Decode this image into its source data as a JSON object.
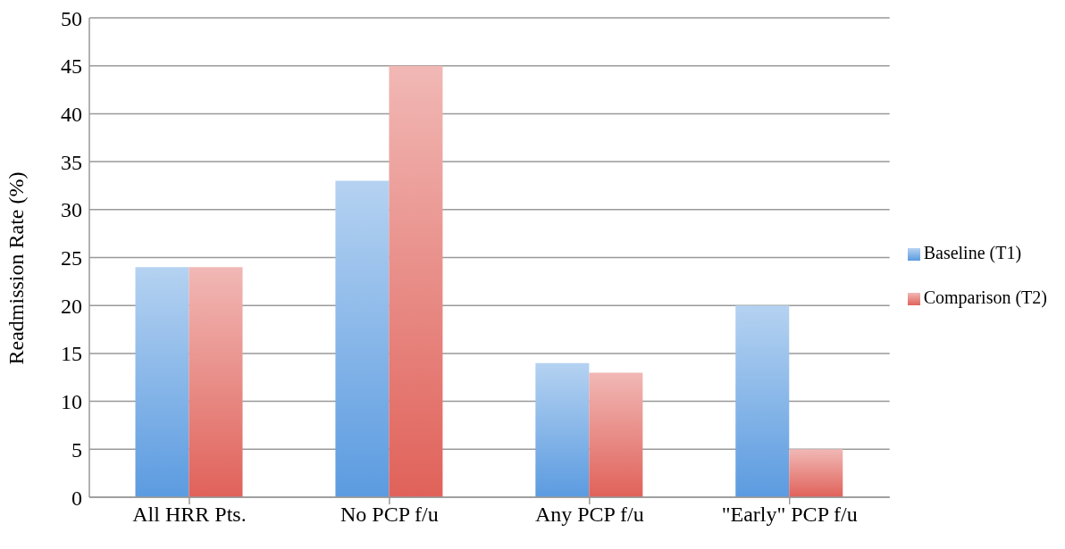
{
  "chart_data": {
    "type": "bar",
    "ylabel": "Readmission Rate (%)",
    "categories": [
      "All HRR Pts.",
      "No PCP f/u",
      "Any PCP f/u",
      "\"Early\" PCP f/u"
    ],
    "series": [
      {
        "name": "Baseline (T1)",
        "color": "#5b9be0",
        "values": [
          24,
          33,
          14,
          20
        ]
      },
      {
        "name": "Comparison (T2)",
        "color": "#e0625a",
        "values": [
          24,
          45,
          13,
          5
        ]
      }
    ],
    "ylim": [
      0,
      50
    ],
    "yticks": [
      0,
      5,
      10,
      15,
      20,
      25,
      30,
      35,
      40,
      45,
      50
    ],
    "grid": "y",
    "legend": "right"
  }
}
